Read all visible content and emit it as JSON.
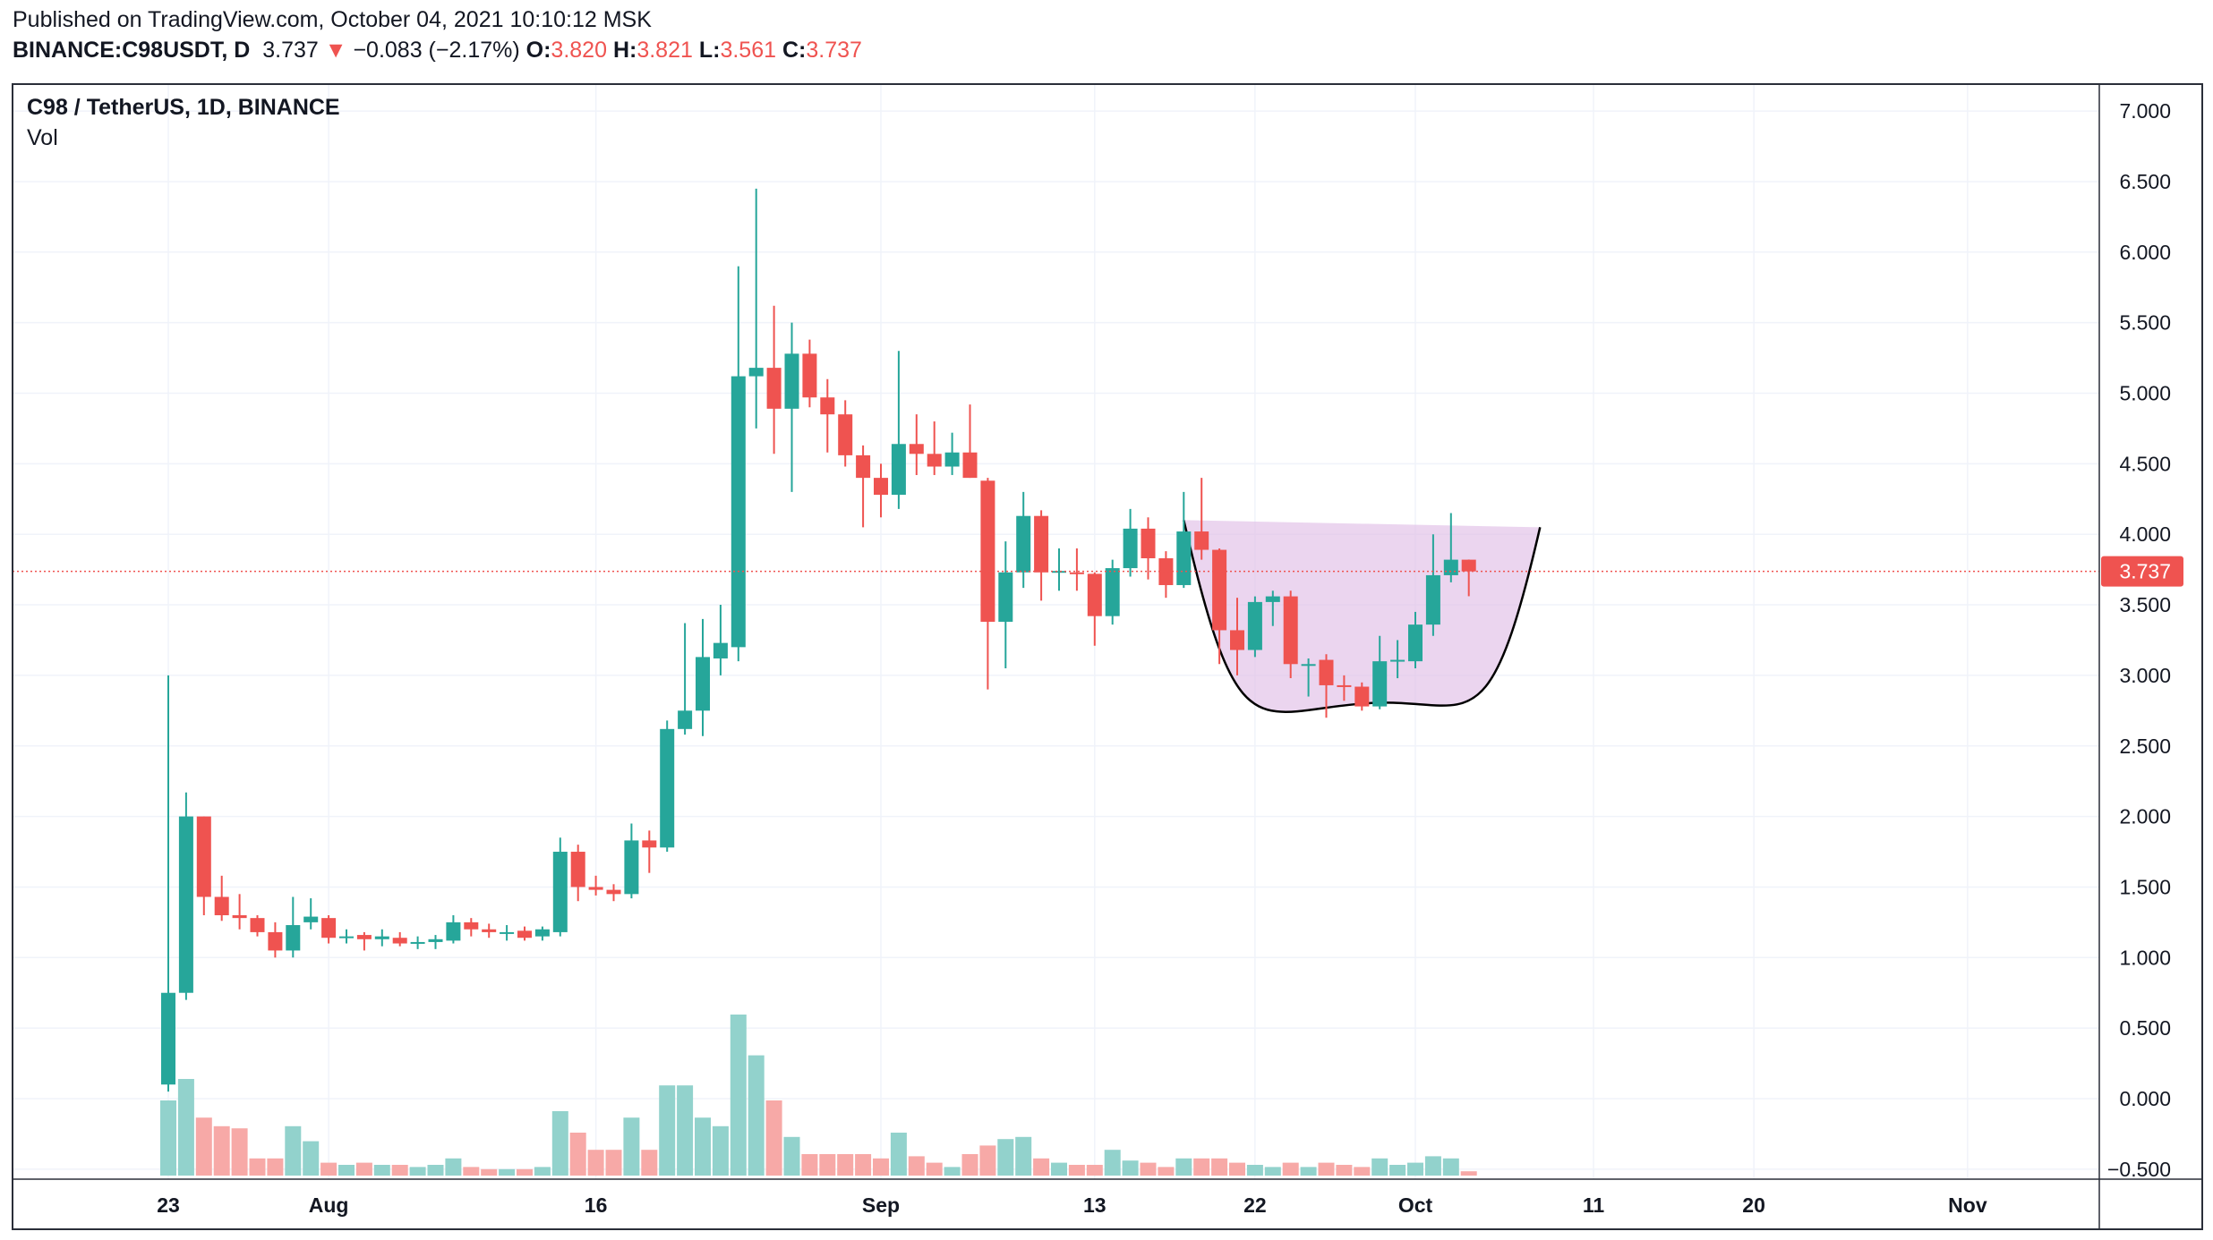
{
  "header": {
    "published": "Published on TradingView.com, October 04, 2021 10:10:12 MSK",
    "symbol": "BINANCE:C98USDT, D",
    "last": "3.737",
    "arrow": "▼",
    "change": "−0.083 (−2.17%)",
    "o_label": "O:",
    "o_val": "3.820",
    "h_label": "H:",
    "h_val": "3.821",
    "l_label": "L:",
    "l_val": "3.561",
    "c_label": "C:",
    "c_val": "3.737"
  },
  "legend": {
    "title": "C98 / TetherUS, 1D, BINANCE",
    "volume": "Vol"
  },
  "colors": {
    "up": "#26a69a",
    "down": "#ef5350",
    "up_vol": "#92d2cc",
    "down_vol": "#f7a9a7",
    "grid": "#f0f3fa",
    "price_line": "#ef5350",
    "pattern_fill": "#e1bee7",
    "pattern_line": "#000000"
  },
  "chart_data": {
    "type": "candlestick",
    "symbol": "C98 / TetherUS",
    "interval": "1D",
    "exchange": "BINANCE",
    "y_axis": {
      "min": -0.5,
      "max": 7.0,
      "step": 0.5,
      "tick_labels": [
        "7.000",
        "6.500",
        "6.000",
        "5.500",
        "5.000",
        "4.500",
        "4.000",
        "3.500",
        "3.000",
        "2.500",
        "2.000",
        "1.500",
        "1.000",
        "0.500",
        "0.000",
        "−0.500"
      ]
    },
    "x_axis": {
      "tick_labels": [
        {
          "label": "23",
          "date": "2021-07-23"
        },
        {
          "label": "Aug",
          "date": "2021-08-01"
        },
        {
          "label": "16",
          "date": "2021-08-16"
        },
        {
          "label": "Sep",
          "date": "2021-09-01"
        },
        {
          "label": "13",
          "date": "2021-09-13"
        },
        {
          "label": "22",
          "date": "2021-09-22"
        },
        {
          "label": "Oct",
          "date": "2021-10-01"
        },
        {
          "label": "11",
          "date": "2021-10-11"
        },
        {
          "label": "20",
          "date": "2021-10-20"
        },
        {
          "label": "Nov",
          "date": "2021-11-01"
        }
      ]
    },
    "last_price": 3.737,
    "last_price_label": "3.737",
    "candles": [
      {
        "date": "2021-07-23",
        "open": 0.1,
        "high": 3.0,
        "low": 0.05,
        "close": 0.75,
        "vol": 0.35
      },
      {
        "date": "2021-07-24",
        "open": 0.75,
        "high": 2.17,
        "low": 0.7,
        "close": 2.0,
        "vol": 0.45
      },
      {
        "date": "2021-07-25",
        "open": 2.0,
        "high": 2.0,
        "low": 1.3,
        "close": 1.43,
        "vol": 0.27
      },
      {
        "date": "2021-07-26",
        "open": 1.43,
        "high": 1.58,
        "low": 1.26,
        "close": 1.3,
        "vol": 0.23
      },
      {
        "date": "2021-07-27",
        "open": 1.3,
        "high": 1.45,
        "low": 1.2,
        "close": 1.28,
        "vol": 0.22
      },
      {
        "date": "2021-07-28",
        "open": 1.28,
        "high": 1.3,
        "low": 1.15,
        "close": 1.18,
        "vol": 0.08
      },
      {
        "date": "2021-07-29",
        "open": 1.18,
        "high": 1.25,
        "low": 1.0,
        "close": 1.05,
        "vol": 0.08
      },
      {
        "date": "2021-07-30",
        "open": 1.05,
        "high": 1.43,
        "low": 1.0,
        "close": 1.23,
        "vol": 0.23
      },
      {
        "date": "2021-07-31",
        "open": 1.25,
        "high": 1.42,
        "low": 1.2,
        "close": 1.29,
        "vol": 0.16
      },
      {
        "date": "2021-08-01",
        "open": 1.28,
        "high": 1.3,
        "low": 1.1,
        "close": 1.14,
        "vol": 0.06
      },
      {
        "date": "2021-08-02",
        "open": 1.14,
        "high": 1.2,
        "low": 1.1,
        "close": 1.15,
        "vol": 0.05
      },
      {
        "date": "2021-08-03",
        "open": 1.16,
        "high": 1.18,
        "low": 1.05,
        "close": 1.13,
        "vol": 0.06
      },
      {
        "date": "2021-08-04",
        "open": 1.13,
        "high": 1.2,
        "low": 1.08,
        "close": 1.15,
        "vol": 0.05
      },
      {
        "date": "2021-08-05",
        "open": 1.14,
        "high": 1.18,
        "low": 1.08,
        "close": 1.1,
        "vol": 0.05
      },
      {
        "date": "2021-08-06",
        "open": 1.1,
        "high": 1.15,
        "low": 1.06,
        "close": 1.11,
        "vol": 0.04
      },
      {
        "date": "2021-08-07",
        "open": 1.11,
        "high": 1.16,
        "low": 1.06,
        "close": 1.13,
        "vol": 0.05
      },
      {
        "date": "2021-08-08",
        "open": 1.12,
        "high": 1.3,
        "low": 1.1,
        "close": 1.25,
        "vol": 0.08
      },
      {
        "date": "2021-08-09",
        "open": 1.25,
        "high": 1.28,
        "low": 1.15,
        "close": 1.2,
        "vol": 0.04
      },
      {
        "date": "2021-08-10",
        "open": 1.2,
        "high": 1.24,
        "low": 1.14,
        "close": 1.18,
        "vol": 0.03
      },
      {
        "date": "2021-08-11",
        "open": 1.17,
        "high": 1.23,
        "low": 1.12,
        "close": 1.18,
        "vol": 0.03
      },
      {
        "date": "2021-08-12",
        "open": 1.19,
        "high": 1.22,
        "low": 1.12,
        "close": 1.14,
        "vol": 0.03
      },
      {
        "date": "2021-08-13",
        "open": 1.15,
        "high": 1.22,
        "low": 1.12,
        "close": 1.2,
        "vol": 0.04
      },
      {
        "date": "2021-08-14",
        "open": 1.18,
        "high": 1.85,
        "low": 1.15,
        "close": 1.75,
        "vol": 0.3
      },
      {
        "date": "2021-08-15",
        "open": 1.75,
        "high": 1.8,
        "low": 1.4,
        "close": 1.5,
        "vol": 0.2
      },
      {
        "date": "2021-08-16",
        "open": 1.5,
        "high": 1.58,
        "low": 1.44,
        "close": 1.48,
        "vol": 0.12
      },
      {
        "date": "2021-08-17",
        "open": 1.48,
        "high": 1.52,
        "low": 1.4,
        "close": 1.45,
        "vol": 0.12
      },
      {
        "date": "2021-08-18",
        "open": 1.45,
        "high": 1.95,
        "low": 1.42,
        "close": 1.83,
        "vol": 0.27
      },
      {
        "date": "2021-08-19",
        "open": 1.83,
        "high": 1.9,
        "low": 1.6,
        "close": 1.78,
        "vol": 0.12
      },
      {
        "date": "2021-08-20",
        "open": 1.78,
        "high": 2.68,
        "low": 1.75,
        "close": 2.62,
        "vol": 0.42
      },
      {
        "date": "2021-08-21",
        "open": 2.62,
        "high": 3.37,
        "low": 2.58,
        "close": 2.75,
        "vol": 0.42
      },
      {
        "date": "2021-08-22",
        "open": 2.75,
        "high": 3.4,
        "low": 2.57,
        "close": 3.13,
        "vol": 0.27
      },
      {
        "date": "2021-08-23",
        "open": 3.12,
        "high": 3.5,
        "low": 3.0,
        "close": 3.23,
        "vol": 0.23
      },
      {
        "date": "2021-08-24",
        "open": 3.2,
        "high": 5.9,
        "low": 3.1,
        "close": 5.12,
        "vol": 0.75
      },
      {
        "date": "2021-08-25",
        "open": 5.12,
        "high": 6.45,
        "low": 4.75,
        "close": 5.18,
        "vol": 0.56
      },
      {
        "date": "2021-08-26",
        "open": 5.18,
        "high": 5.62,
        "low": 4.57,
        "close": 4.89,
        "vol": 0.35
      },
      {
        "date": "2021-08-27",
        "open": 4.89,
        "high": 5.5,
        "low": 4.3,
        "close": 5.28,
        "vol": 0.18
      },
      {
        "date": "2021-08-28",
        "open": 5.28,
        "high": 5.38,
        "low": 4.9,
        "close": 4.97,
        "vol": 0.1
      },
      {
        "date": "2021-08-29",
        "open": 4.97,
        "high": 5.1,
        "low": 4.58,
        "close": 4.85,
        "vol": 0.1
      },
      {
        "date": "2021-08-30",
        "open": 4.85,
        "high": 4.95,
        "low": 4.48,
        "close": 4.56,
        "vol": 0.1
      },
      {
        "date": "2021-08-31",
        "open": 4.56,
        "high": 4.63,
        "low": 4.05,
        "close": 4.4,
        "vol": 0.1
      },
      {
        "date": "2021-09-01",
        "open": 4.4,
        "high": 4.5,
        "low": 4.12,
        "close": 4.28,
        "vol": 0.08
      },
      {
        "date": "2021-09-02",
        "open": 4.28,
        "high": 5.3,
        "low": 4.18,
        "close": 4.64,
        "vol": 0.2
      },
      {
        "date": "2021-09-03",
        "open": 4.64,
        "high": 4.85,
        "low": 4.42,
        "close": 4.57,
        "vol": 0.09
      },
      {
        "date": "2021-09-04",
        "open": 4.57,
        "high": 4.8,
        "low": 4.42,
        "close": 4.48,
        "vol": 0.06
      },
      {
        "date": "2021-09-05",
        "open": 4.48,
        "high": 4.72,
        "low": 4.42,
        "close": 4.58,
        "vol": 0.04
      },
      {
        "date": "2021-09-06",
        "open": 4.58,
        "high": 4.92,
        "low": 4.4,
        "close": 4.4,
        "vol": 0.1
      },
      {
        "date": "2021-09-07",
        "open": 4.38,
        "high": 4.4,
        "low": 2.9,
        "close": 3.38,
        "vol": 0.14
      },
      {
        "date": "2021-09-08",
        "open": 3.38,
        "high": 3.95,
        "low": 3.05,
        "close": 3.73,
        "vol": 0.17
      },
      {
        "date": "2021-09-09",
        "open": 3.73,
        "high": 4.3,
        "low": 3.62,
        "close": 4.13,
        "vol": 0.18
      },
      {
        "date": "2021-09-10",
        "open": 4.13,
        "high": 4.17,
        "low": 3.53,
        "close": 3.73,
        "vol": 0.08
      },
      {
        "date": "2021-09-11",
        "open": 3.73,
        "high": 3.9,
        "low": 3.6,
        "close": 3.74,
        "vol": 0.06
      },
      {
        "date": "2021-09-12",
        "open": 3.73,
        "high": 3.9,
        "low": 3.6,
        "close": 3.72,
        "vol": 0.05
      },
      {
        "date": "2021-09-13",
        "open": 3.72,
        "high": 3.73,
        "low": 3.21,
        "close": 3.42,
        "vol": 0.05
      },
      {
        "date": "2021-09-14",
        "open": 3.42,
        "high": 3.82,
        "low": 3.36,
        "close": 3.76,
        "vol": 0.12
      },
      {
        "date": "2021-09-15",
        "open": 3.76,
        "high": 4.18,
        "low": 3.7,
        "close": 4.04,
        "vol": 0.07
      },
      {
        "date": "2021-09-16",
        "open": 4.04,
        "high": 4.12,
        "low": 3.68,
        "close": 3.83,
        "vol": 0.06
      },
      {
        "date": "2021-09-17",
        "open": 3.83,
        "high": 3.88,
        "low": 3.55,
        "close": 3.64,
        "vol": 0.04
      },
      {
        "date": "2021-09-18",
        "open": 3.64,
        "high": 4.3,
        "low": 3.62,
        "close": 4.02,
        "vol": 0.08
      },
      {
        "date": "2021-09-19",
        "open": 4.02,
        "high": 4.4,
        "low": 3.82,
        "close": 3.89,
        "vol": 0.08
      },
      {
        "date": "2021-09-20",
        "open": 3.89,
        "high": 3.9,
        "low": 3.08,
        "close": 3.32,
        "vol": 0.08
      },
      {
        "date": "2021-09-21",
        "open": 3.32,
        "high": 3.55,
        "low": 3.0,
        "close": 3.18,
        "vol": 0.06
      },
      {
        "date": "2021-09-22",
        "open": 3.18,
        "high": 3.56,
        "low": 3.13,
        "close": 3.52,
        "vol": 0.05
      },
      {
        "date": "2021-09-23",
        "open": 3.52,
        "high": 3.6,
        "low": 3.35,
        "close": 3.56,
        "vol": 0.04
      },
      {
        "date": "2021-09-24",
        "open": 3.56,
        "high": 3.6,
        "low": 2.98,
        "close": 3.08,
        "vol": 0.06
      },
      {
        "date": "2021-09-25",
        "open": 3.08,
        "high": 3.12,
        "low": 2.85,
        "close": 3.08,
        "vol": 0.04
      },
      {
        "date": "2021-09-26",
        "open": 3.11,
        "high": 3.15,
        "low": 2.7,
        "close": 2.93,
        "vol": 0.06
      },
      {
        "date": "2021-09-27",
        "open": 2.93,
        "high": 3.0,
        "low": 2.82,
        "close": 2.92,
        "vol": 0.05
      },
      {
        "date": "2021-09-28",
        "open": 2.92,
        "high": 2.95,
        "low": 2.75,
        "close": 2.78,
        "vol": 0.04
      },
      {
        "date": "2021-09-29",
        "open": 2.78,
        "high": 3.28,
        "low": 2.76,
        "close": 3.1,
        "vol": 0.08
      },
      {
        "date": "2021-09-30",
        "open": 3.1,
        "high": 3.25,
        "low": 2.98,
        "close": 3.11,
        "vol": 0.05
      },
      {
        "date": "2021-10-01",
        "open": 3.1,
        "high": 3.45,
        "low": 3.05,
        "close": 3.36,
        "vol": 0.06
      },
      {
        "date": "2021-10-02",
        "open": 3.36,
        "high": 4.0,
        "low": 3.28,
        "close": 3.71,
        "vol": 0.09
      },
      {
        "date": "2021-10-03",
        "open": 3.71,
        "high": 4.15,
        "low": 3.66,
        "close": 3.82,
        "vol": 0.08
      },
      {
        "date": "2021-10-04",
        "open": 3.82,
        "high": 3.821,
        "low": 3.561,
        "close": 3.737,
        "vol": 0.02
      }
    ],
    "pattern": {
      "type": "rounded bottom (cup)",
      "start": {
        "date": "2021-09-18",
        "price": 4.1
      },
      "bottom": {
        "date": "2021-09-28",
        "price": 2.8
      },
      "end": {
        "date": "2021-10-08",
        "price": 4.05
      }
    }
  }
}
